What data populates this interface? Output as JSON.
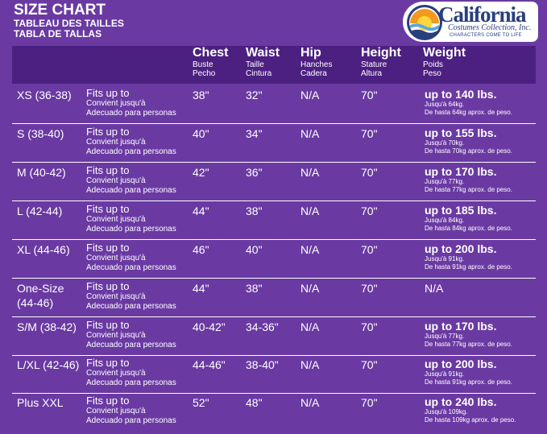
{
  "header": {
    "title": "SIZE CHART",
    "subtitle_fr": "TABLEAU DES TAILLES",
    "subtitle_es": "TABLA DE TALLAS"
  },
  "logo": {
    "word": "California",
    "sub1": "Costumes Collection, Inc.",
    "sub2": "CHARACTERS COME TO LIFE",
    "colors": {
      "navy": "#2a3e7e",
      "orange": "#f29a1f",
      "yellow": "#ffd63a",
      "blue": "#5aa6dd"
    }
  },
  "columns": {
    "chest": {
      "label": "Chest",
      "fr": "Buste",
      "es": "Pecho"
    },
    "waist": {
      "label": "Waist",
      "fr": "Taille",
      "es": "Cintura"
    },
    "hip": {
      "label": "Hip",
      "fr": "Hanches",
      "es": "Cadera"
    },
    "height": {
      "label": "Height",
      "fr": "Stature",
      "es": "Altura"
    },
    "weight": {
      "label": "Weight",
      "fr": "Poids",
      "es": "Peso"
    }
  },
  "colors": {
    "background": "#6a3aa2",
    "header_bar": "#4c2080",
    "text": "#ffffff"
  },
  "rows": [
    {
      "size_line1": "XS (36-38)",
      "size_line2": "",
      "fits": "Fits up to",
      "fits_fr": "Convient jusqu'à",
      "fits_es": "Adecuado para personas",
      "chest": "38\"",
      "waist": "32\"",
      "hip": "N/A",
      "height": "70\"",
      "weight": "up to 140 lbs.",
      "weight_fr": "Jusqu'à 64kg.",
      "weight_es": "De hasta 64kg aprox. de peso."
    },
    {
      "size_line1": "S (38-40)",
      "size_line2": "",
      "fits": "Fits up to",
      "fits_fr": "Convient jusqu'à",
      "fits_es": "Adecuado para personas",
      "chest": "40\"",
      "waist": "34\"",
      "hip": "N/A",
      "height": "70\"",
      "weight": "up to 155 lbs.",
      "weight_fr": "Jusqu'à 70kg.",
      "weight_es": "De hasta 70kg aprox. de peso."
    },
    {
      "size_line1": "M (40-42)",
      "size_line2": "",
      "fits": "Fits up to",
      "fits_fr": "Convient jusqu'à",
      "fits_es": "Adecuado para personas",
      "chest": "42\"",
      "waist": "36\"",
      "hip": "N/A",
      "height": "70\"",
      "weight": "up to 170 lbs.",
      "weight_fr": "Jusqu'à 77kg.",
      "weight_es": "De hasta 77kg aprox. de peso."
    },
    {
      "size_line1": "L (42-44)",
      "size_line2": "",
      "fits": "Fits up to",
      "fits_fr": "Convient jusqu'à",
      "fits_es": "Adecuado para personas",
      "chest": "44\"",
      "waist": "38\"",
      "hip": "N/A",
      "height": "70\"",
      "weight": "up to 185 lbs.",
      "weight_fr": "Jusqu'à 84kg.",
      "weight_es": "De hasta 84kg aprox. de peso."
    },
    {
      "size_line1": "XL (44-46)",
      "size_line2": "",
      "fits": "Fits up to",
      "fits_fr": "Convient jusqu'à",
      "fits_es": "Adecuado para personas",
      "chest": "46\"",
      "waist": "40\"",
      "hip": "N/A",
      "height": "70\"",
      "weight": "up to 200 lbs.",
      "weight_fr": "Jusqu'à 91kg.",
      "weight_es": "De hasta 91kg aprox. de peso."
    },
    {
      "size_line1": "One-Size",
      "size_line2": "(44-46)",
      "fits": "Fits up to",
      "fits_fr": "Convient jusqu'à",
      "fits_es": "Adecuado para personas",
      "chest": "44\"",
      "waist": "38\"",
      "hip": "N/A",
      "height": "70\"",
      "weight": "N/A",
      "weight_fr": "",
      "weight_es": ""
    },
    {
      "size_line1": "S/M (38-42)",
      "size_line2": "",
      "fits": "Fits up to",
      "fits_fr": "Convient jusqu'à",
      "fits_es": "Adecuado para personas",
      "chest": "40-42\"",
      "waist": "34-36\"",
      "hip": "N/A",
      "height": "70\"",
      "weight": "up to 170 lbs.",
      "weight_fr": "Jusqu'à 77kg.",
      "weight_es": "De hasta 77kg aprox. de peso."
    },
    {
      "size_line1": "L/XL (42-46)",
      "size_line2": "",
      "fits": "Fits up to",
      "fits_fr": "Convient jusqu'à",
      "fits_es": "Adecuado para personas",
      "chest": "44-46\"",
      "waist": "38-40\"",
      "hip": "N/A",
      "height": "70\"",
      "weight": "up to 200 lbs.",
      "weight_fr": "Jusqu'à 91kg.",
      "weight_es": "De hasta 91kg aprox. de peso."
    },
    {
      "size_line1": "Plus XXL",
      "size_line2": "",
      "fits": "Fits up to",
      "fits_fr": "Convient jusqu'à",
      "fits_es": "Adecuado para personas",
      "chest": "52\"",
      "waist": "48\"",
      "hip": "N/A",
      "height": "70\"",
      "weight": "up to 240 lbs.",
      "weight_fr": "Jusqu'à 109kg.",
      "weight_es": "De hasta 109kg aprox. de peso."
    }
  ]
}
